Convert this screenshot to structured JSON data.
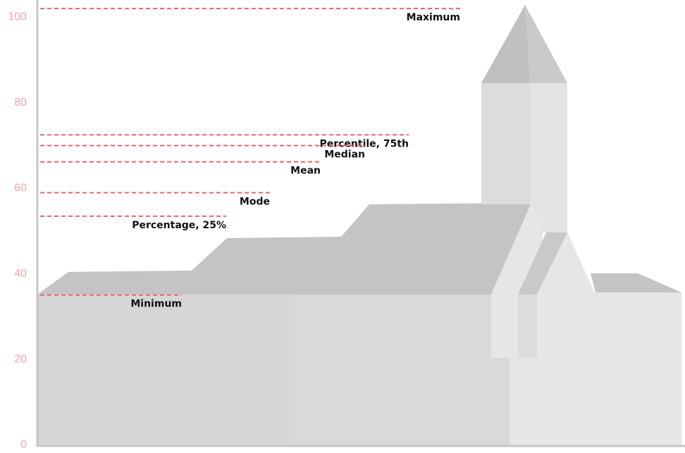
{
  "chart_data": {
    "type": "hline",
    "categories": [
      "Maximum",
      "Percentile, 75th",
      "Median",
      "Mean",
      "Mode",
      "Percentage, 25%",
      "Minimum"
    ],
    "values": [
      102,
      72.5,
      70,
      66.2,
      59,
      53.5,
      35.1
    ],
    "color": "#f0606e",
    "ylim": [
      0,
      104
    ],
    "yticks": [
      0,
      20,
      40,
      60,
      80,
      100
    ]
  }
}
